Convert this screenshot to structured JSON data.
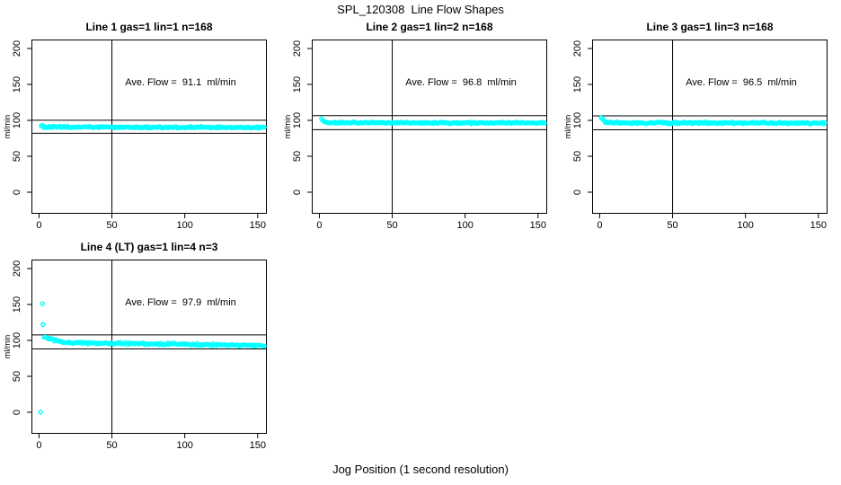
{
  "figure": {
    "title": "SPL_120308  Line Flow Shapes",
    "xlabel": "Jog Position (1 second resolution)",
    "background": "#ffffff"
  },
  "chart_data": {
    "type": "scatter",
    "title": "SPL_120308  Line Flow Shapes",
    "xlabel": "Jog Position (1 second resolution)",
    "ylabel": "ml/min",
    "point_color": "#00ffff",
    "axis_color": "#000000",
    "grid": false,
    "xlim": [
      -5.2,
      156.3
    ],
    "ylim": [
      -30,
      212.5
    ],
    "x_ticks": [
      0,
      50,
      100,
      150
    ],
    "x_tick_labels": [
      "0",
      "50",
      "100",
      "150"
    ],
    "y_ticks": [
      0,
      50,
      100,
      150,
      200
    ],
    "y_tick_labels": [
      "0",
      "50",
      "100",
      "150",
      "200"
    ],
    "vline_x": 50,
    "plots": [
      {
        "title": "Line 1 gas=1 lin=1 n=168",
        "line": 1,
        "gas": 1,
        "lin": 1,
        "n": 168,
        "ylabel": "ml/min",
        "annotation": "Ave. Flow =  91.1  ml/min",
        "ave_flow_ml_min": 91.1,
        "ref_lines": [
          100.2,
          82.0
        ],
        "band": {
          "x_from": 1.5,
          "x_to": 154.5,
          "n": 168,
          "start": 92.5,
          "flat": 90.7,
          "end": 90.0,
          "settle": 4,
          "jitter": 1.5
        },
        "extra_points": []
      },
      {
        "title": "Line 2 gas=1 lin=2 n=168",
        "line": 2,
        "gas": 1,
        "lin": 2,
        "n": 168,
        "ylabel": "ml/min",
        "annotation": "Ave. Flow =  96.8  ml/min",
        "ave_flow_ml_min": 96.8,
        "ref_lines": [
          106.5,
          87.1
        ],
        "band": {
          "x_from": 1.5,
          "x_to": 154.5,
          "n": 168,
          "start": 101.0,
          "flat": 96.8,
          "end": 96.3,
          "settle": 5,
          "jitter": 1.3
        },
        "extra_points": []
      },
      {
        "title": "Line 3 gas=1 lin=3 n=168",
        "line": 3,
        "gas": 1,
        "lin": 3,
        "n": 168,
        "ylabel": "ml/min",
        "annotation": "Ave. Flow =  96.5  ml/min",
        "ave_flow_ml_min": 96.5,
        "ref_lines": [
          106.2,
          86.9
        ],
        "band": {
          "x_from": 1.0,
          "x_to": 154.5,
          "n": 168,
          "start": 103.5,
          "flat": 96.6,
          "end": 96.2,
          "settle": 5,
          "jitter": 1.6
        },
        "extra_points": []
      },
      {
        "title": "Line 4 (LT) gas=1 lin=4 n=3",
        "line": 4,
        "gas": 1,
        "lin": 4,
        "n": 3,
        "ylabel": "ml/min",
        "annotation": "Ave. Flow =  97.9  ml/min",
        "ave_flow_ml_min": 97.9,
        "ref_lines": [
          107.7,
          88.1
        ],
        "band": {
          "x_from": 3.5,
          "x_to": 154.5,
          "n": 152,
          "start": 106.0,
          "flat": 96.8,
          "end": 93.0,
          "settle": 17,
          "jitter": 1.9
        },
        "extra_points": [
          [
            1,
            0
          ],
          [
            2.3,
            151
          ],
          [
            2.7,
            122
          ]
        ]
      }
    ]
  }
}
